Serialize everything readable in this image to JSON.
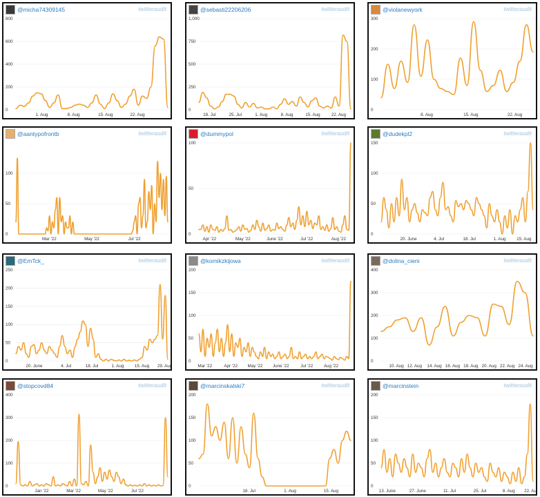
{
  "brand_label": "twitteraudit",
  "charts": [
    {
      "handle": "@micha74309145",
      "avatar_color": "#3a3a3a",
      "chart_data": {
        "type": "line",
        "ylim": [
          0,
          800
        ],
        "yticks": [
          0,
          200,
          400,
          600,
          800
        ],
        "xtick_labels": [
          "1. Aug",
          "8. Aug",
          "15. Aug",
          "22. Aug"
        ],
        "xtick_pos": [
          0.17,
          0.38,
          0.59,
          0.8
        ],
        "values": [
          10,
          40,
          30,
          60,
          120,
          150,
          140,
          80,
          20,
          60,
          130,
          10,
          10,
          20,
          40,
          50,
          40,
          20,
          60,
          130,
          50,
          10,
          60,
          140,
          80,
          20,
          50,
          120,
          180,
          40,
          120,
          100,
          200,
          560,
          640,
          620,
          20
        ]
      }
    },
    {
      "handle": "@sebasti22206206",
      "avatar_color": "#444444",
      "chart_data": {
        "type": "line",
        "ylim": [
          0,
          1000
        ],
        "yticks": [
          0,
          250,
          500,
          750,
          1000
        ],
        "ytick_labels": [
          "0",
          "250",
          "500",
          "750",
          "1,000"
        ],
        "xtick_labels": [
          "18. Jul",
          "25. Jul",
          "1. Aug",
          "8. Aug",
          "15. Aug",
          "22. Aug"
        ],
        "xtick_pos": [
          0.07,
          0.24,
          0.41,
          0.58,
          0.75,
          0.92
        ],
        "values": [
          80,
          190,
          130,
          40,
          10,
          30,
          90,
          170,
          170,
          150,
          60,
          20,
          80,
          30,
          70,
          20,
          30,
          10,
          10,
          30,
          10,
          60,
          120,
          60,
          90,
          40,
          140,
          80,
          30,
          100,
          130,
          40,
          20,
          40,
          20,
          140,
          40,
          820,
          750,
          10
        ]
      }
    },
    {
      "handle": "@violanewyork",
      "avatar_color": "#d9893a",
      "chart_data": {
        "type": "line",
        "ylim": [
          0,
          300
        ],
        "yticks": [
          0,
          100,
          200,
          300
        ],
        "xtick_labels": [
          "8. Aug",
          "15. Aug",
          "22. Aug"
        ],
        "xtick_pos": [
          0.3,
          0.59,
          0.88
        ],
        "values": [
          40,
          150,
          70,
          160,
          90,
          280,
          110,
          230,
          100,
          70,
          60,
          50,
          170,
          80,
          290,
          130,
          60,
          80,
          130,
          60,
          90,
          160,
          280,
          190
        ]
      }
    },
    {
      "handle": "@aantypofrontb",
      "avatar_color": "#e8b06a",
      "chart_data": {
        "type": "line",
        "ylim": [
          0,
          150
        ],
        "yticks": [
          0,
          50,
          100
        ],
        "xtick_labels": [
          "Mar '22",
          "May '22",
          "Jul '22"
        ],
        "xtick_pos": [
          0.22,
          0.5,
          0.78
        ],
        "values": [
          20,
          125,
          0,
          0,
          0,
          0,
          0,
          0,
          0,
          0,
          0,
          0,
          0,
          0,
          0,
          0,
          0,
          0,
          0,
          0,
          0,
          10,
          5,
          30,
          0,
          20,
          10,
          40,
          60,
          0,
          60,
          20,
          30,
          0,
          20,
          10,
          10,
          30,
          0,
          20,
          0,
          0,
          0,
          0,
          0,
          0,
          0,
          0,
          0,
          0,
          0,
          0,
          0,
          0,
          0,
          0,
          0,
          0,
          0,
          0,
          0,
          0,
          0,
          0,
          0,
          0,
          0,
          0,
          0,
          0,
          0,
          0,
          0,
          0,
          0,
          0,
          0,
          0,
          0,
          0,
          5,
          20,
          30,
          0,
          50,
          60,
          10,
          30,
          90,
          10,
          20,
          70,
          40,
          80,
          0,
          50,
          20,
          120,
          60,
          100,
          40,
          90,
          30,
          95,
          20
        ]
      }
    },
    {
      "handle": "@dummypol",
      "avatar_color": "#d81e2c",
      "chart_data": {
        "type": "line",
        "ylim": [
          0,
          100
        ],
        "yticks": [
          0,
          50,
          100
        ],
        "xtick_labels": [
          "Apr '22",
          "May '22",
          "June '22",
          "Jul '22",
          "Aug '22"
        ],
        "xtick_pos": [
          0.07,
          0.29,
          0.5,
          0.71,
          0.92
        ],
        "values": [
          5,
          5,
          10,
          3,
          8,
          2,
          10,
          5,
          4,
          8,
          2,
          5,
          3,
          6,
          20,
          4,
          5,
          2,
          3,
          5,
          8,
          3,
          10,
          5,
          6,
          2,
          4,
          10,
          5,
          15,
          8,
          3,
          12,
          4,
          6,
          10,
          3,
          5,
          4,
          12,
          6,
          8,
          5,
          3,
          10,
          18,
          8,
          12,
          5,
          15,
          30,
          10,
          20,
          8,
          25,
          10,
          15,
          6,
          12,
          10,
          20,
          5,
          8,
          4,
          10,
          3,
          6,
          18,
          5,
          8,
          3,
          2,
          10,
          20,
          5,
          4,
          100
        ]
      }
    },
    {
      "handle": "@dudekpl2",
      "avatar_color": "#5a7a2e",
      "chart_data": {
        "type": "line",
        "ylim": [
          0,
          150
        ],
        "yticks": [
          0,
          50,
          100,
          150
        ],
        "xtick_labels": [
          "20. June",
          "4. Jul",
          "18. Jul",
          "1. Aug",
          "15. Aug"
        ],
        "xtick_pos": [
          0.18,
          0.38,
          0.58,
          0.78,
          0.94
        ],
        "values": [
          20,
          60,
          40,
          10,
          50,
          20,
          60,
          30,
          90,
          40,
          60,
          20,
          40,
          50,
          35,
          20,
          40,
          35,
          30,
          60,
          70,
          40,
          30,
          60,
          85,
          40,
          45,
          30,
          20,
          55,
          45,
          50,
          40,
          55,
          50,
          40,
          30,
          60,
          50,
          40,
          30,
          10,
          50,
          30,
          20,
          40,
          20,
          0,
          30,
          10,
          40,
          0,
          30,
          20,
          40,
          60,
          20,
          70,
          150,
          40
        ]
      }
    },
    {
      "handle": "@EmTck_",
      "avatar_color": "#2a6a7a",
      "chart_data": {
        "type": "line",
        "ylim": [
          0,
          250
        ],
        "yticks": [
          0,
          50,
          100,
          150,
          200,
          250
        ],
        "xtick_labels": [
          "20. June",
          "4. Jul",
          "18. Jul",
          "1. Aug",
          "15. Aug",
          "29. Aug"
        ],
        "xtick_pos": [
          0.12,
          0.33,
          0.5,
          0.67,
          0.83,
          0.98
        ],
        "values": [
          20,
          40,
          30,
          50,
          20,
          10,
          40,
          45,
          20,
          30,
          50,
          30,
          20,
          40,
          30,
          20,
          10,
          40,
          70,
          40,
          20,
          30,
          10,
          40,
          60,
          80,
          110,
          100,
          40,
          90,
          60,
          10,
          20,
          5,
          0,
          5,
          0,
          5,
          2,
          0,
          3,
          0,
          5,
          0,
          2,
          0,
          3,
          0,
          5,
          10,
          40,
          30,
          60,
          50,
          60,
          70,
          210,
          60,
          180,
          5
        ]
      }
    },
    {
      "handle": "@komikzkijowa",
      "avatar_color": "#8a8a8a",
      "chart_data": {
        "type": "line",
        "ylim": [
          0,
          200
        ],
        "yticks": [
          0,
          50,
          100,
          150,
          200
        ],
        "xtick_labels": [
          "Mar '22",
          "Apr '22",
          "May '22",
          "June '22",
          "Jul '22",
          "Aug '22"
        ],
        "xtick_pos": [
          0.04,
          0.21,
          0.37,
          0.54,
          0.71,
          0.87
        ],
        "values": [
          60,
          20,
          70,
          10,
          50,
          30,
          60,
          10,
          40,
          70,
          20,
          50,
          10,
          40,
          80,
          20,
          60,
          10,
          40,
          30,
          50,
          10,
          30,
          20,
          40,
          10,
          30,
          20,
          10,
          5,
          20,
          10,
          30,
          5,
          20,
          10,
          15,
          5,
          10,
          20,
          5,
          10,
          15,
          5,
          10,
          30,
          5,
          10,
          5,
          20,
          5,
          10,
          15,
          5,
          10,
          5,
          10,
          20,
          5,
          10,
          15,
          5,
          10,
          8,
          5,
          2,
          10,
          5,
          3,
          8,
          5,
          2,
          10,
          5,
          175
        ]
      }
    },
    {
      "handle": "@dolina_cieni",
      "avatar_color": "#7a6a5a",
      "chart_data": {
        "type": "line",
        "ylim": [
          0,
          400
        ],
        "yticks": [
          0,
          100,
          200,
          300,
          400
        ],
        "xtick_labels": [
          "10. Aug",
          "12. Aug",
          "14. Aug",
          "16. Aug",
          "18. Aug",
          "20. Aug",
          "22. Aug",
          "24. Aug"
        ],
        "xtick_pos": [
          0.1,
          0.22,
          0.35,
          0.47,
          0.59,
          0.71,
          0.83,
          0.95
        ],
        "values": [
          130,
          150,
          180,
          190,
          130,
          190,
          70,
          150,
          240,
          110,
          170,
          200,
          190,
          110,
          250,
          240,
          160,
          350,
          300,
          110
        ]
      }
    },
    {
      "handle": "@stopcovd84",
      "avatar_color": "#7a4a3a",
      "chart_data": {
        "type": "line",
        "ylim": [
          0,
          400
        ],
        "yticks": [
          0,
          100,
          200,
          300,
          400
        ],
        "xtick_labels": [
          "Jan '22",
          "Mar '22",
          "May '22",
          "Jul '22"
        ],
        "xtick_pos": [
          0.17,
          0.38,
          0.59,
          0.8
        ],
        "values": [
          10,
          195,
          5,
          0,
          5,
          0,
          20,
          0,
          5,
          10,
          0,
          5,
          0,
          10,
          5,
          0,
          40,
          0,
          5,
          0,
          10,
          5,
          0,
          20,
          0,
          30,
          0,
          315,
          10,
          5,
          20,
          0,
          180,
          60,
          10,
          40,
          80,
          20,
          60,
          30,
          70,
          40,
          20,
          60,
          40,
          10,
          30,
          5,
          0,
          5,
          0,
          3,
          0,
          5,
          0,
          10,
          0,
          5,
          0,
          3,
          0,
          5,
          0,
          2,
          300,
          40
        ]
      }
    },
    {
      "handle": "@marcinskalski7",
      "avatar_color": "#5a4a3a",
      "chart_data": {
        "type": "line",
        "ylim": [
          0,
          200
        ],
        "yticks": [
          0,
          50,
          100,
          150,
          200
        ],
        "xtick_labels": [
          "18. Jul",
          "1. Aug",
          "15. Aug"
        ],
        "xtick_pos": [
          0.33,
          0.6,
          0.87
        ],
        "values": [
          60,
          70,
          180,
          110,
          130,
          100,
          140,
          60,
          150,
          50,
          130,
          70,
          40,
          160,
          60,
          20,
          0,
          0,
          0,
          0,
          0,
          0,
          0,
          0,
          0,
          0,
          0,
          0,
          0,
          0,
          0,
          60,
          80,
          50,
          100,
          120,
          100
        ]
      }
    },
    {
      "handle": "@marcinstein",
      "avatar_color": "#6a5a4a",
      "chart_data": {
        "type": "line",
        "ylim": [
          0,
          200
        ],
        "yticks": [
          0,
          50,
          100,
          150,
          200
        ],
        "xtick_labels": [
          "13. June",
          "27. June",
          "11. Jul",
          "25. Jul",
          "8. Aug",
          "22. Aug"
        ],
        "xtick_pos": [
          0.04,
          0.24,
          0.45,
          0.65,
          0.84,
          0.99
        ],
        "values": [
          40,
          80,
          30,
          60,
          20,
          70,
          50,
          30,
          60,
          40,
          20,
          70,
          30,
          50,
          40,
          20,
          60,
          80,
          30,
          50,
          20,
          40,
          60,
          30,
          20,
          50,
          40,
          20,
          60,
          30,
          70,
          40,
          20,
          50,
          30,
          40,
          20,
          10,
          50,
          30,
          20,
          40,
          10,
          30,
          20,
          5,
          30,
          10,
          40,
          5,
          20,
          70,
          180,
          10
        ]
      }
    }
  ]
}
